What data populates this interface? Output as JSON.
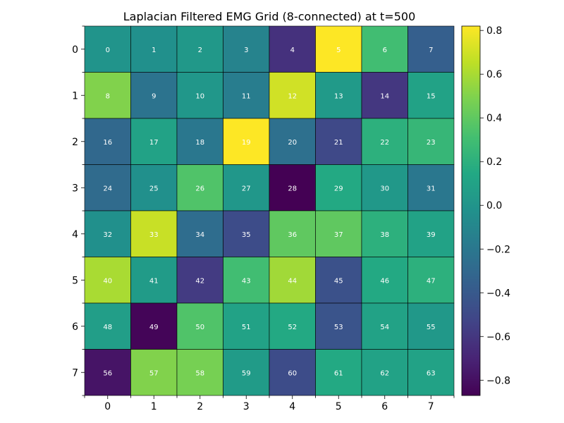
{
  "chart_data": {
    "type": "heatmap",
    "title": "Laplacian Filtered EMG Grid (8-connected) at t=500",
    "xlabel": "",
    "ylabel": "",
    "x_ticks": [
      "0",
      "1",
      "2",
      "3",
      "4",
      "5",
      "6",
      "7"
    ],
    "y_ticks": [
      "0",
      "1",
      "2",
      "3",
      "4",
      "5",
      "6",
      "7"
    ],
    "colormap": "viridis",
    "vmin": -0.87,
    "vmax": 0.82,
    "colorbar_ticks": [
      {
        "value": 0.8,
        "label": "0.8"
      },
      {
        "value": 0.6,
        "label": "0.6"
      },
      {
        "value": 0.4,
        "label": "0.4"
      },
      {
        "value": 0.2,
        "label": "0.2"
      },
      {
        "value": 0.0,
        "label": "0.0"
      },
      {
        "value": -0.2,
        "label": "−0.2"
      },
      {
        "value": -0.4,
        "label": "−0.4"
      },
      {
        "value": -0.6,
        "label": "−0.6"
      },
      {
        "value": -0.8,
        "label": "−0.8"
      }
    ],
    "cell_labels": [
      [
        "0",
        "1",
        "2",
        "3",
        "4",
        "5",
        "6",
        "7"
      ],
      [
        "8",
        "9",
        "10",
        "11",
        "12",
        "13",
        "14",
        "15"
      ],
      [
        "16",
        "17",
        "18",
        "19",
        "20",
        "21",
        "22",
        "23"
      ],
      [
        "24",
        "25",
        "26",
        "27",
        "28",
        "29",
        "30",
        "31"
      ],
      [
        "32",
        "33",
        "34",
        "35",
        "36",
        "37",
        "38",
        "39"
      ],
      [
        "40",
        "41",
        "42",
        "43",
        "44",
        "45",
        "46",
        "47"
      ],
      [
        "48",
        "49",
        "50",
        "51",
        "52",
        "53",
        "54",
        "55"
      ],
      [
        "56",
        "57",
        "58",
        "59",
        "60",
        "61",
        "62",
        "63"
      ]
    ],
    "values": [
      [
        0.0,
        -0.03,
        0.03,
        -0.12,
        -0.63,
        0.82,
        0.3,
        -0.36
      ],
      [
        0.5,
        -0.23,
        0.02,
        -0.16,
        0.7,
        0.04,
        -0.6,
        0.1
      ],
      [
        -0.3,
        0.1,
        -0.2,
        0.82,
        -0.25,
        -0.5,
        0.2,
        0.25
      ],
      [
        -0.28,
        -0.03,
        0.35,
        0.02,
        -0.87,
        0.15,
        0.03,
        -0.2
      ],
      [
        -0.03,
        0.68,
        -0.27,
        -0.48,
        0.4,
        0.4,
        0.2,
        0.1
      ],
      [
        0.6,
        0.05,
        -0.58,
        0.3,
        0.58,
        -0.45,
        0.15,
        0.2
      ],
      [
        0.07,
        -0.85,
        0.35,
        0.1,
        0.15,
        -0.43,
        0.1,
        0.03
      ],
      [
        -0.78,
        0.5,
        0.47,
        0.05,
        -0.48,
        0.15,
        0.1,
        0.1
      ]
    ]
  }
}
